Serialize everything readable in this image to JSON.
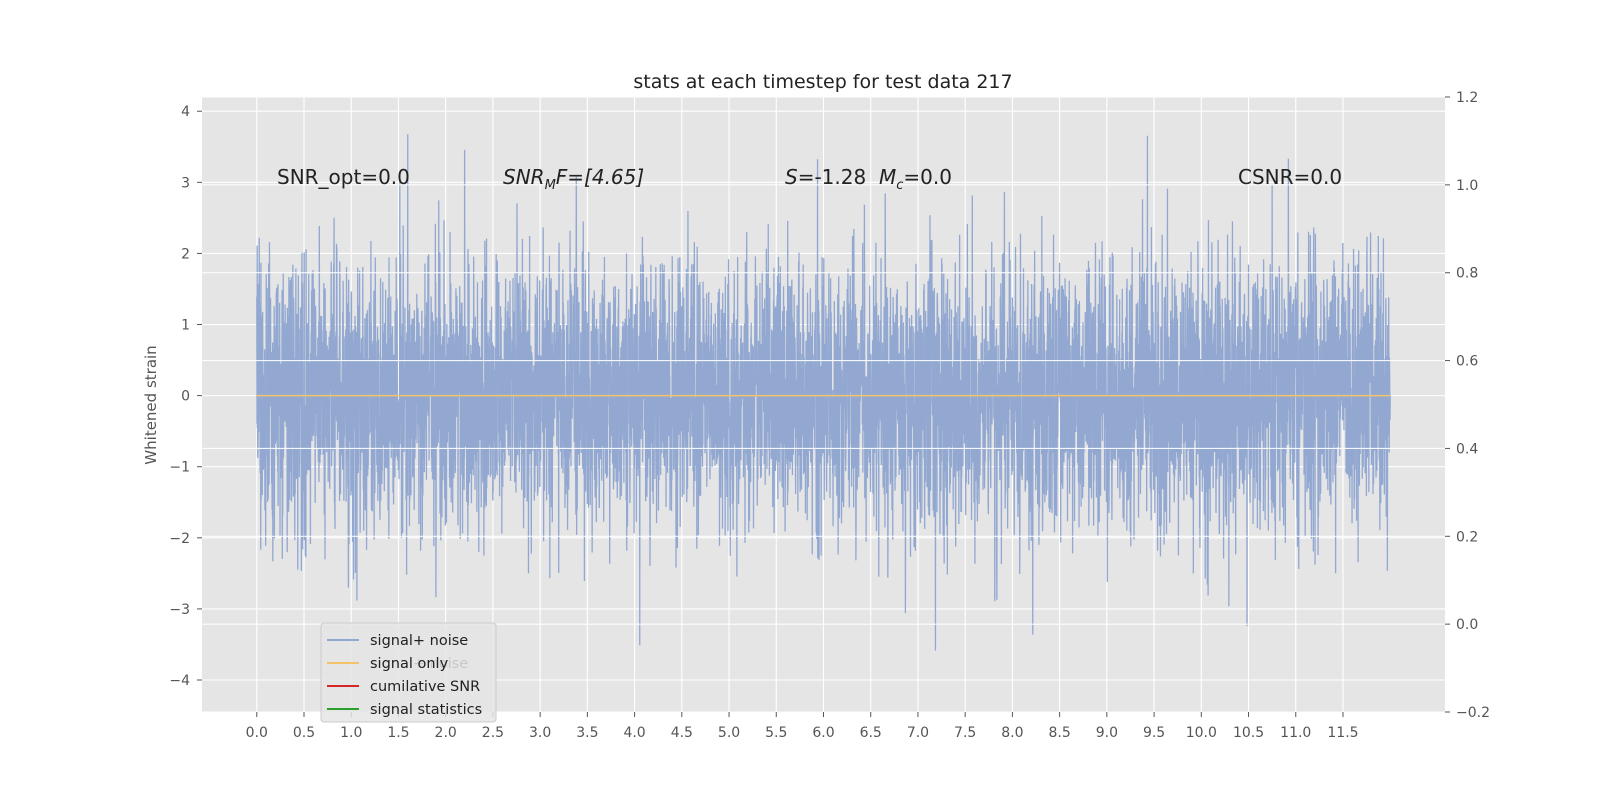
{
  "chart_data": {
    "type": "line",
    "title": "stats at each timestep for test data 217",
    "ylabel": "Whitened strain",
    "xlabel": "",
    "xlim": [
      -0.58,
      12.58
    ],
    "ylim": [
      -4.45,
      4.2
    ],
    "y2lim": [
      -0.2,
      1.2
    ],
    "xticks": [
      "0.0",
      "0.5",
      "1.0",
      "1.5",
      "2.0",
      "2.5",
      "3.0",
      "3.5",
      "4.0",
      "4.5",
      "5.0",
      "5.5",
      "6.0",
      "6.5",
      "7.0",
      "7.5",
      "8.0",
      "8.5",
      "9.0",
      "9.5",
      "10.0",
      "10.5",
      "11.0",
      "11.5"
    ],
    "yticks": [
      "4",
      "3",
      "2",
      "1",
      "0",
      "−1",
      "−2",
      "−3",
      "−4"
    ],
    "y2ticks": [
      "1.2",
      "1.0",
      "0.8",
      "0.6",
      "0.4",
      "0.2",
      "0.0",
      "−0.2"
    ],
    "grid": true,
    "legend_position": "lower-left",
    "series": [
      {
        "name": "signal+ noise",
        "color": "#92a8d1",
        "kind": "noise",
        "x_start": 0.0,
        "x_end": 12.0,
        "std": 0.95,
        "seed": 217
      },
      {
        "name": "signal only",
        "color": "#f5c26b",
        "kind": "constant",
        "value": 0.0,
        "x_start": 0.0,
        "x_end": 12.0
      },
      {
        "name": "cumilative SNR",
        "color": "#d62728",
        "kind": "none"
      },
      {
        "name": "signal statistics",
        "color": "#2ca02c",
        "kind": "none"
      }
    ],
    "annotations": {
      "snr_opt": "SNR_opt=0.0",
      "snr_mf_a": "SNR",
      "snr_mf_sub": "M",
      "snr_mf_b": "F=[4.65]",
      "s_sym": "S",
      "s_val": "=-1.28",
      "mc_sym": "M",
      "mc_sub": "c",
      "mc_val": "=0.0",
      "csnr": "CSNR=0.0"
    },
    "legend_ghost": "signal+ noise"
  },
  "colors": {
    "plot_background": "#e5e5e5",
    "grid": "#ffffff",
    "page_background": "#ffffff"
  }
}
